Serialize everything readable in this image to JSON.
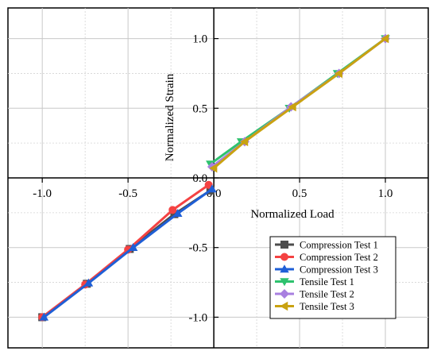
{
  "chart_data": {
    "type": "line",
    "xlabel": "Normalized Load",
    "ylabel": "Normalized Strain",
    "xlim": [
      -1.2,
      1.25
    ],
    "ylim": [
      -1.22,
      1.22
    ],
    "xticks": [
      -1.0,
      -0.5,
      0.0,
      0.5,
      1.0
    ],
    "yticks": [
      -1.0,
      -0.5,
      0.0,
      0.5,
      1.0
    ],
    "xtick_labels": [
      "-1.0",
      "-0.5",
      "0.0",
      "0.5",
      "1.0"
    ],
    "ytick_labels": [
      "-1.0",
      "-0.5",
      "0.0",
      "0.5",
      "1.0"
    ],
    "grid": true,
    "legend_position": "bottom-right",
    "series": [
      {
        "name": "Compression Test 1",
        "color": "#4d4d4d",
        "marker": "square",
        "x": [
          -1.0,
          -0.74,
          -0.49,
          -0.23,
          -0.02
        ],
        "y": [
          -1.0,
          -0.76,
          -0.51,
          -0.26,
          -0.09
        ]
      },
      {
        "name": "Compression Test 2",
        "color": "#f44242",
        "marker": "circle",
        "x": [
          -1.0,
          -0.75,
          -0.5,
          -0.24,
          -0.03
        ],
        "y": [
          -1.0,
          -0.765,
          -0.515,
          -0.23,
          -0.05
        ]
      },
      {
        "name": "Compression Test 3",
        "color": "#1f5fd6",
        "marker": "triangle-up",
        "x": [
          -0.99,
          -0.73,
          -0.47,
          -0.21,
          -0.01
        ],
        "y": [
          -1.0,
          -0.755,
          -0.5,
          -0.255,
          -0.08
        ]
      },
      {
        "name": "Tensile Test 1",
        "color": "#2ec26e",
        "marker": "triangle-down",
        "x": [
          -0.02,
          0.16,
          0.44,
          0.72,
          1.0
        ],
        "y": [
          0.1,
          0.26,
          0.5,
          0.75,
          1.0
        ]
      },
      {
        "name": "Tensile Test 2",
        "color": "#a87fe0",
        "marker": "diamond",
        "x": [
          -0.01,
          0.18,
          0.45,
          0.73,
          1.0
        ],
        "y": [
          0.08,
          0.26,
          0.51,
          0.75,
          1.0
        ]
      },
      {
        "name": "Tensile Test 3",
        "color": "#c9a211",
        "marker": "triangle-left",
        "x": [
          0.0,
          0.18,
          0.46,
          0.73,
          1.0
        ],
        "y": [
          0.07,
          0.26,
          0.51,
          0.75,
          1.0
        ]
      }
    ]
  }
}
